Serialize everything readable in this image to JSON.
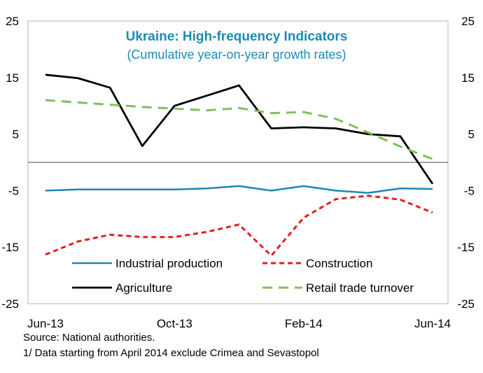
{
  "chart_data": {
    "type": "line",
    "title": "Ukraine: High-frequency Indicators",
    "subtitle": "(Cumulative year-on-year growth rates)",
    "xlabel": "",
    "ylabel": "",
    "x": [
      "Jun-13",
      "Jul-13",
      "Aug-13",
      "Sep-13",
      "Oct-13",
      "Nov-13",
      "Dec-13",
      "Jan-14",
      "Feb-14",
      "Mar-14",
      "Apr-14",
      "May-14",
      "Jun-14"
    ],
    "x_tick_labels": [
      "Jun-13",
      "Oct-13",
      "Feb-14",
      "Jun-14"
    ],
    "ylim": [
      -25,
      25
    ],
    "y_ticks": [
      -25,
      -15,
      -5,
      5,
      15,
      25
    ],
    "y_tick_labels": [
      "-25",
      "-15",
      "-5",
      "5",
      "15",
      "25"
    ],
    "y_ticks_right": [
      -25,
      -15,
      -5,
      5,
      15,
      25
    ],
    "y_tick_labels_right": [
      "-25",
      "-15",
      "-5",
      "5",
      "15",
      "25"
    ],
    "grid": false,
    "legend_position": "bottom",
    "series": [
      {
        "name": "Industrial production",
        "color": "#1b87b8",
        "style": "solid",
        "values": [
          -5.0,
          -4.8,
          -4.8,
          -4.8,
          -4.8,
          -4.6,
          -4.2,
          -5.0,
          -4.2,
          -5.0,
          -5.4,
          -4.6,
          -4.7
        ]
      },
      {
        "name": "Construction",
        "color": "#e02020",
        "style": "dashed",
        "values": [
          -16.3,
          -14.0,
          -12.8,
          -13.2,
          -13.2,
          -12.3,
          -11.0,
          -16.5,
          -9.8,
          -6.5,
          -5.9,
          -6.6,
          -8.9
        ]
      },
      {
        "name": "Agriculture",
        "color": "#000000",
        "style": "solid",
        "values": [
          15.5,
          14.9,
          13.2,
          2.9,
          10.0,
          11.8,
          13.6,
          6.0,
          6.2,
          6.0,
          5.0,
          4.6,
          -3.8
        ]
      },
      {
        "name": "Retail trade turnover",
        "color": "#7fbf5f",
        "style": "dashed",
        "values": [
          11.0,
          10.6,
          10.2,
          9.8,
          9.5,
          9.2,
          9.6,
          8.7,
          8.9,
          7.7,
          5.3,
          2.8,
          0.6
        ]
      }
    ]
  },
  "notes": {
    "source": "Source:  National authorities.",
    "footnote": "1/ Data starting from April 2014 exclude Crimea and Sevastopol"
  }
}
